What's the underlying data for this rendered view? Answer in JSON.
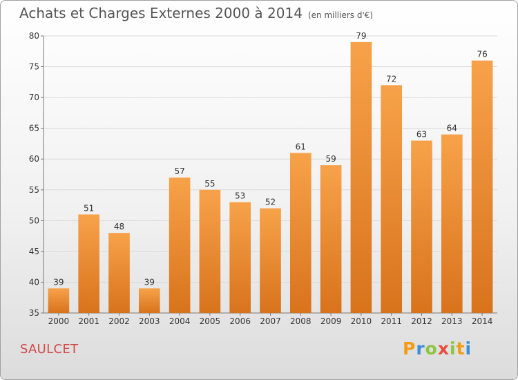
{
  "title": "Achats et Charges Externes 2000 à 2014",
  "unit_note": "(en milliers d'€)",
  "commune": "SAULCET",
  "brand": {
    "letters": [
      {
        "char": "P",
        "color": "#f39c12"
      },
      {
        "char": "r",
        "color": "#3b8fd8"
      },
      {
        "char": "o",
        "color": "#8cc63f"
      },
      {
        "char": "x",
        "color": "#e74c3c"
      },
      {
        "char": "i",
        "color": "#8cc63f"
      },
      {
        "char": "t",
        "color": "#f39c12"
      },
      {
        "char": "i",
        "color": "#3b8fd8"
      }
    ]
  },
  "chart_data": {
    "type": "bar",
    "categories": [
      "2000",
      "2001",
      "2002",
      "2003",
      "2004",
      "2005",
      "2006",
      "2007",
      "2008",
      "2009",
      "2010",
      "2011",
      "2012",
      "2013",
      "2014"
    ],
    "values": [
      39,
      51,
      48,
      39,
      57,
      55,
      53,
      52,
      61,
      59,
      79,
      72,
      63,
      64,
      76
    ],
    "ylim": [
      35,
      80
    ],
    "yticks": [
      35,
      40,
      45,
      50,
      55,
      60,
      65,
      70,
      75,
      80
    ],
    "grid": true,
    "bar_color_light": "#f7a24a",
    "bar_color_dark": "#d8731c",
    "title": "Achats et Charges Externes 2000 à 2014"
  }
}
